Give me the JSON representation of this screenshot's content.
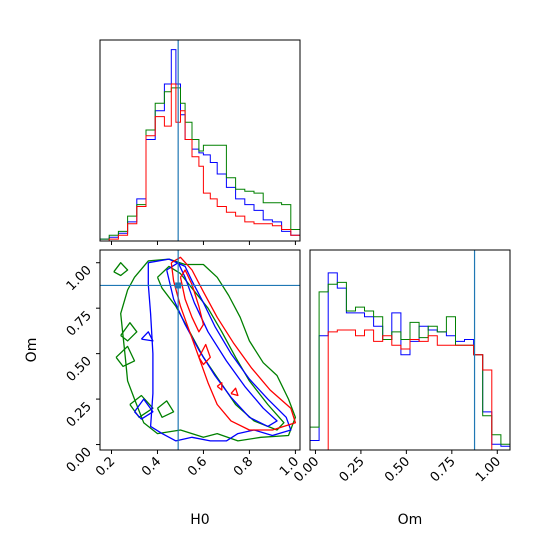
{
  "chart_data": {
    "type": "corner",
    "grid": false,
    "legend": "none",
    "colors": {
      "series": [
        "#0000ff",
        "#008000",
        "#ff0000"
      ],
      "truth": "#1f77b4",
      "frame": "#000000"
    },
    "truth_values": {
      "H0": 0.49,
      "Om": 0.875
    },
    "axes": {
      "H0": {
        "label": "H0",
        "range": [
          0.15,
          1.02
        ],
        "ticks": [
          0.2,
          0.4,
          0.6,
          0.8,
          1.0
        ],
        "tick_labels": [
          "0.2",
          "0.4",
          "0.6",
          "0.8",
          "1.0"
        ]
      },
      "Om": {
        "label": "Om",
        "range": [
          -0.03,
          1.07
        ],
        "ticks": [
          0.0,
          0.25,
          0.5,
          0.75,
          1.0
        ],
        "tick_labels": [
          "0.00",
          "0.25",
          "0.50",
          "0.75",
          "1.00"
        ]
      }
    },
    "marginal_H0": {
      "bins": [
        0.15,
        0.19,
        0.23,
        0.27,
        0.31,
        0.35,
        0.39,
        0.43,
        0.46,
        0.48,
        0.5,
        0.52,
        0.55,
        0.58,
        0.6,
        0.63,
        0.66,
        0.7,
        0.74,
        0.78,
        0.82,
        0.86,
        0.9,
        0.94,
        0.98,
        1.02
      ],
      "ylim": [
        0,
        1.05
      ],
      "series": [
        {
          "color": "#0000ff",
          "values": [
            0.01,
            0.02,
            0.04,
            0.1,
            0.22,
            0.53,
            0.68,
            0.82,
            1.0,
            0.82,
            0.66,
            0.53,
            0.48,
            0.46,
            0.45,
            0.41,
            0.35,
            0.28,
            0.22,
            0.19,
            0.16,
            0.11,
            0.1,
            0.05,
            0.03
          ]
        },
        {
          "color": "#008000",
          "values": [
            0.01,
            0.03,
            0.05,
            0.13,
            0.19,
            0.58,
            0.72,
            0.78,
            0.8,
            0.8,
            0.72,
            0.62,
            0.53,
            0.47,
            0.5,
            0.5,
            0.5,
            0.33,
            0.27,
            0.26,
            0.25,
            0.2,
            0.2,
            0.19,
            0.06
          ]
        },
        {
          "color": "#ff0000",
          "values": [
            0.0,
            0.01,
            0.03,
            0.09,
            0.18,
            0.55,
            0.65,
            0.6,
            0.82,
            0.62,
            0.68,
            0.53,
            0.44,
            0.39,
            0.25,
            0.22,
            0.18,
            0.15,
            0.13,
            0.1,
            0.09,
            0.09,
            0.08,
            0.06,
            0.03
          ]
        }
      ]
    },
    "marginal_Om": {
      "bins": [
        -0.03,
        0.02,
        0.07,
        0.12,
        0.17,
        0.22,
        0.27,
        0.32,
        0.37,
        0.42,
        0.47,
        0.52,
        0.57,
        0.62,
        0.67,
        0.72,
        0.77,
        0.82,
        0.87,
        0.92,
        0.97,
        1.02,
        1.07
      ],
      "ylim": [
        0,
        1.05
      ],
      "series": [
        {
          "color": "#0000ff",
          "values": [
            0.05,
            0.6,
            0.93,
            0.85,
            0.72,
            0.72,
            0.7,
            0.65,
            0.58,
            0.72,
            0.5,
            0.57,
            0.65,
            0.63,
            0.62,
            0.6,
            0.57,
            0.58,
            0.5,
            0.2,
            0.03,
            0.02
          ]
        },
        {
          "color": "#008000",
          "values": [
            0.12,
            0.83,
            0.87,
            0.88,
            0.73,
            0.75,
            0.73,
            0.7,
            0.58,
            0.62,
            0.58,
            0.67,
            0.59,
            0.65,
            0.62,
            0.7,
            0.55,
            0.55,
            0.5,
            0.18,
            0.08,
            0.03
          ]
        },
        {
          "color": "#ff0000",
          "values": [
            0.0,
            0.0,
            0.62,
            0.63,
            0.63,
            0.6,
            0.63,
            0.57,
            0.6,
            0.55,
            0.53,
            0.58,
            0.57,
            0.6,
            0.55,
            0.55,
            0.55,
            0.55,
            0.5,
            0.42,
            0.0,
            0.0
          ]
        }
      ]
    },
    "joint_contours": [
      {
        "color": "#008000",
        "paths": [
          [
            [
              0.3,
              0.92
            ],
            [
              0.36,
              1.01
            ],
            [
              0.45,
              1.02
            ],
            [
              0.52,
              0.99
            ],
            [
              0.6,
              0.99
            ],
            [
              0.66,
              0.92
            ],
            [
              0.71,
              0.82
            ],
            [
              0.76,
              0.7
            ],
            [
              0.8,
              0.57
            ],
            [
              0.86,
              0.45
            ],
            [
              0.92,
              0.38
            ],
            [
              0.97,
              0.25
            ],
            [
              1.0,
              0.15
            ],
            [
              0.97,
              0.05
            ],
            [
              0.85,
              0.04
            ],
            [
              0.75,
              0.02
            ],
            [
              0.66,
              0.06
            ],
            [
              0.6,
              0.04
            ],
            [
              0.55,
              0.06
            ],
            [
              0.5,
              0.08
            ],
            [
              0.4,
              0.06
            ],
            [
              0.34,
              0.12
            ],
            [
              0.3,
              0.25
            ],
            [
              0.27,
              0.35
            ],
            [
              0.26,
              0.48
            ],
            [
              0.25,
              0.6
            ],
            [
              0.24,
              0.72
            ],
            [
              0.27,
              0.85
            ],
            [
              0.3,
              0.92
            ]
          ],
          [
            [
              0.4,
              0.92
            ],
            [
              0.45,
              0.98
            ],
            [
              0.5,
              0.94
            ],
            [
              0.55,
              0.86
            ],
            [
              0.62,
              0.75
            ],
            [
              0.68,
              0.62
            ],
            [
              0.74,
              0.48
            ],
            [
              0.8,
              0.35
            ],
            [
              0.88,
              0.22
            ],
            [
              0.95,
              0.12
            ],
            [
              0.92,
              0.08
            ],
            [
              0.82,
              0.13
            ],
            [
              0.74,
              0.22
            ],
            [
              0.67,
              0.35
            ],
            [
              0.6,
              0.48
            ],
            [
              0.54,
              0.62
            ],
            [
              0.48,
              0.76
            ],
            [
              0.42,
              0.86
            ],
            [
              0.4,
              0.92
            ]
          ],
          [
            [
              0.21,
              0.95
            ],
            [
              0.24,
              1.0
            ],
            [
              0.27,
              0.96
            ],
            [
              0.24,
              0.93
            ],
            [
              0.21,
              0.95
            ]
          ],
          [
            [
              0.24,
              0.6
            ],
            [
              0.28,
              0.67
            ],
            [
              0.31,
              0.62
            ],
            [
              0.27,
              0.57
            ],
            [
              0.24,
              0.6
            ]
          ],
          [
            [
              0.22,
              0.48
            ],
            [
              0.27,
              0.54
            ],
            [
              0.3,
              0.46
            ],
            [
              0.25,
              0.43
            ],
            [
              0.22,
              0.48
            ]
          ],
          [
            [
              0.28,
              0.22
            ],
            [
              0.33,
              0.27
            ],
            [
              0.38,
              0.2
            ],
            [
              0.32,
              0.15
            ],
            [
              0.28,
              0.22
            ]
          ],
          [
            [
              0.4,
              0.2
            ],
            [
              0.44,
              0.24
            ],
            [
              0.47,
              0.18
            ],
            [
              0.42,
              0.15
            ],
            [
              0.4,
              0.2
            ]
          ]
        ]
      },
      {
        "color": "#0000ff",
        "paths": [
          [
            [
              0.36,
              1.0
            ],
            [
              0.45,
              1.02
            ],
            [
              0.52,
              0.98
            ],
            [
              0.55,
              0.9
            ],
            [
              0.6,
              0.78
            ],
            [
              0.65,
              0.65
            ],
            [
              0.72,
              0.5
            ],
            [
              0.8,
              0.36
            ],
            [
              0.88,
              0.25
            ],
            [
              0.96,
              0.15
            ],
            [
              0.98,
              0.08
            ],
            [
              0.9,
              0.05
            ],
            [
              0.82,
              0.08
            ],
            [
              0.75,
              0.06
            ],
            [
              0.7,
              0.02
            ],
            [
              0.63,
              0.02
            ],
            [
              0.55,
              0.04
            ],
            [
              0.48,
              0.02
            ],
            [
              0.42,
              0.06
            ],
            [
              0.37,
              0.1
            ],
            [
              0.38,
              0.28
            ],
            [
              0.38,
              0.5
            ],
            [
              0.37,
              0.72
            ],
            [
              0.36,
              0.88
            ],
            [
              0.36,
              1.0
            ]
          ],
          [
            [
              0.44,
              0.96
            ],
            [
              0.49,
              1.0
            ],
            [
              0.52,
              0.92
            ],
            [
              0.56,
              0.78
            ],
            [
              0.62,
              0.62
            ],
            [
              0.7,
              0.46
            ],
            [
              0.78,
              0.32
            ],
            [
              0.86,
              0.2
            ],
            [
              0.92,
              0.13
            ],
            [
              0.88,
              0.1
            ],
            [
              0.8,
              0.15
            ],
            [
              0.72,
              0.26
            ],
            [
              0.65,
              0.38
            ],
            [
              0.58,
              0.52
            ],
            [
              0.52,
              0.66
            ],
            [
              0.47,
              0.8
            ],
            [
              0.44,
              0.96
            ]
          ],
          [
            [
              0.3,
              0.18
            ],
            [
              0.34,
              0.25
            ],
            [
              0.38,
              0.18
            ],
            [
              0.33,
              0.14
            ],
            [
              0.3,
              0.18
            ]
          ],
          [
            [
              0.33,
              0.58
            ],
            [
              0.36,
              0.62
            ],
            [
              0.38,
              0.57
            ],
            [
              0.33,
              0.58
            ]
          ]
        ]
      },
      {
        "color": "#ff0000",
        "paths": [
          [
            [
              0.46,
              1.0
            ],
            [
              0.5,
              1.03
            ],
            [
              0.55,
              0.96
            ],
            [
              0.6,
              0.84
            ],
            [
              0.66,
              0.7
            ],
            [
              0.73,
              0.56
            ],
            [
              0.81,
              0.42
            ],
            [
              0.89,
              0.3
            ],
            [
              0.98,
              0.2
            ],
            [
              1.0,
              0.12
            ],
            [
              0.9,
              0.08
            ],
            [
              0.8,
              0.08
            ],
            [
              0.72,
              0.13
            ],
            [
              0.66,
              0.22
            ],
            [
              0.62,
              0.34
            ],
            [
              0.58,
              0.48
            ],
            [
              0.54,
              0.62
            ],
            [
              0.5,
              0.76
            ],
            [
              0.47,
              0.9
            ],
            [
              0.46,
              1.0
            ]
          ],
          [
            [
              0.5,
              0.92
            ],
            [
              0.52,
              0.96
            ],
            [
              0.55,
              0.88
            ],
            [
              0.58,
              0.76
            ],
            [
              0.6,
              0.66
            ],
            [
              0.58,
              0.62
            ],
            [
              0.55,
              0.7
            ],
            [
              0.52,
              0.8
            ],
            [
              0.5,
              0.92
            ]
          ],
          [
            [
              0.58,
              0.48
            ],
            [
              0.61,
              0.55
            ],
            [
              0.63,
              0.48
            ],
            [
              0.6,
              0.44
            ],
            [
              0.58,
              0.48
            ]
          ],
          [
            [
              0.72,
              0.28
            ],
            [
              0.74,
              0.31
            ],
            [
              0.75,
              0.27
            ],
            [
              0.72,
              0.28
            ]
          ],
          [
            [
              0.66,
              0.32
            ],
            [
              0.68,
              0.34
            ],
            [
              0.68,
              0.3
            ],
            [
              0.66,
              0.32
            ]
          ]
        ]
      }
    ],
    "joint_points": [
      {
        "color": "#1f77b4",
        "x": 0.49,
        "y": 0.875
      }
    ]
  }
}
